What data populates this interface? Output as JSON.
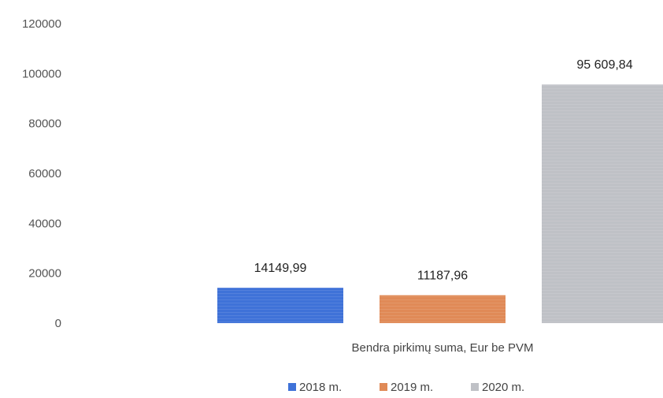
{
  "chart_data": {
    "type": "bar",
    "categories": [
      "Bendra pirkimų suma, Eur be PVM"
    ],
    "series": [
      {
        "name": "2018 m.",
        "values": [
          14149.99
        ],
        "label": "14149,99",
        "color": "#3f72d8"
      },
      {
        "name": "2019 m.",
        "values": [
          11187.96
        ],
        "label": "11187,96",
        "color": "#e08a57"
      },
      {
        "name": "2020 m.",
        "values": [
          95609.84
        ],
        "label": "95 609,84",
        "color": "#bfc1c6"
      }
    ],
    "y_ticks": [
      "0",
      "20000",
      "40000",
      "60000",
      "80000",
      "100000",
      "120000"
    ],
    "ylim": [
      0,
      120000
    ],
    "grid": false,
    "legend_position": "bottom"
  }
}
